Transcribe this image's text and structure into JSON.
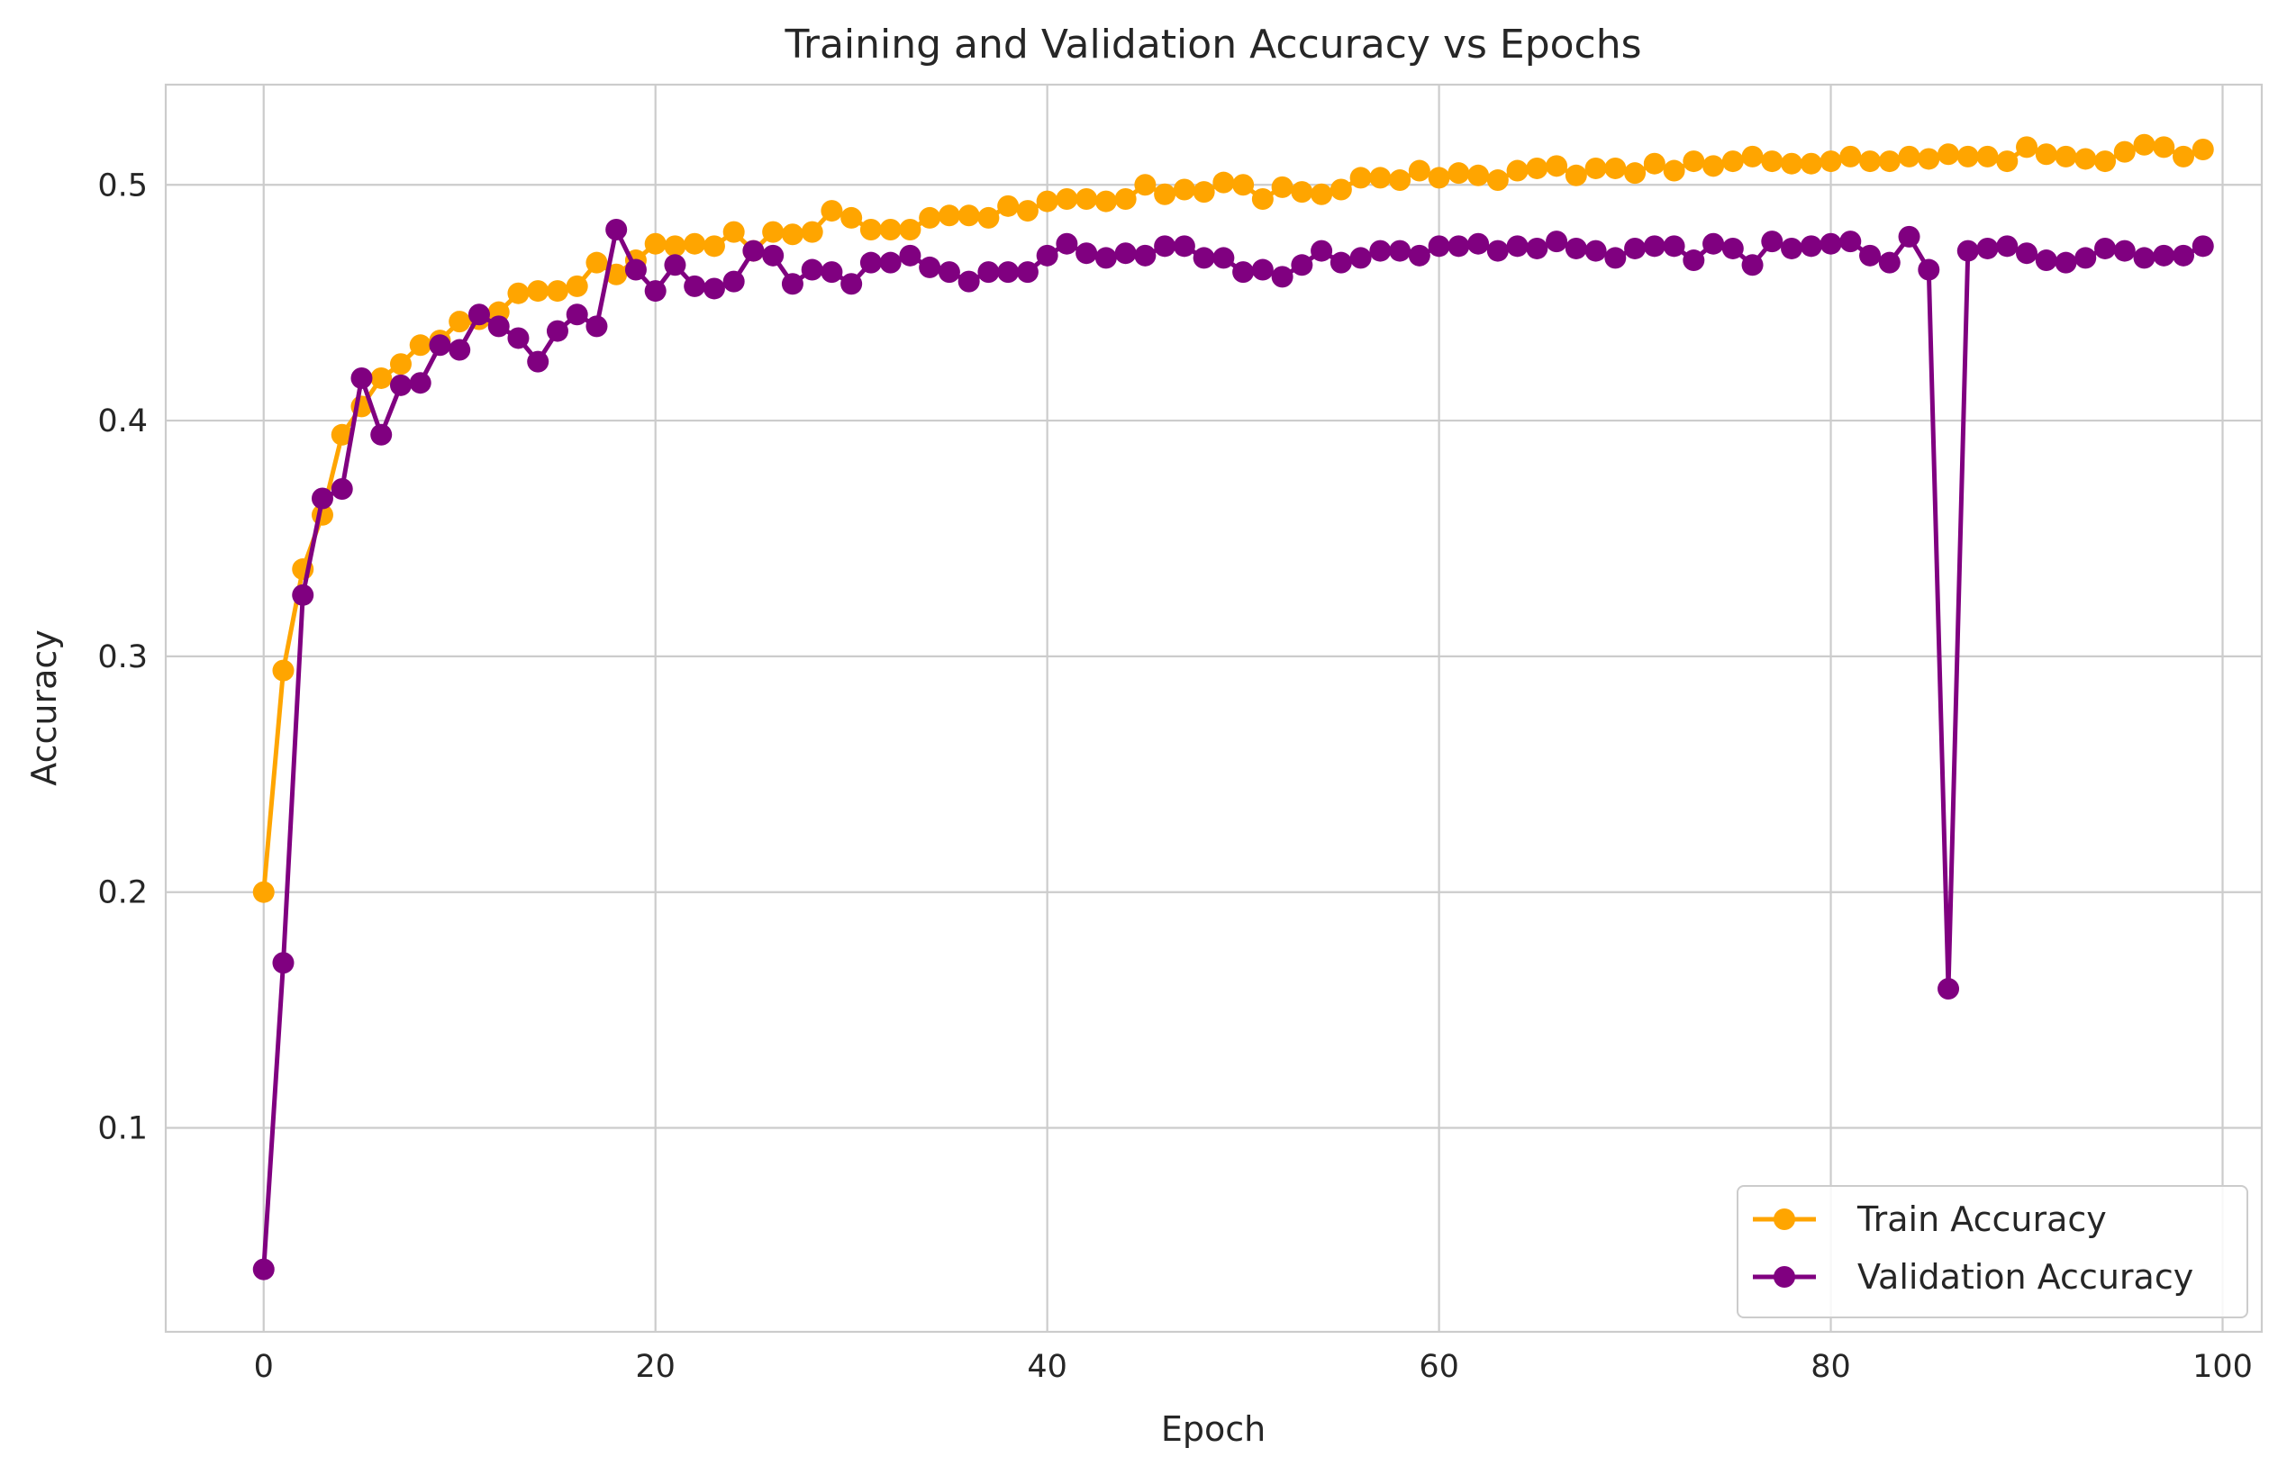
{
  "chart_data": {
    "type": "line",
    "title": "Training and Validation Accuracy vs Epochs",
    "xlabel": "Epoch",
    "ylabel": "Accuracy",
    "xlim": [
      -5,
      102
    ],
    "ylim": [
      0.0135,
      0.5425
    ],
    "xticks": [
      0,
      20,
      40,
      60,
      80,
      100
    ],
    "yticks": [
      0.1,
      0.2,
      0.3,
      0.4,
      0.5
    ],
    "xtick_labels": [
      "0",
      "20",
      "40",
      "60",
      "80",
      "100"
    ],
    "ytick_labels": [
      "0.1",
      "0.2",
      "0.3",
      "0.4",
      "0.5"
    ],
    "grid": true,
    "legend_position": "lower right",
    "series": [
      {
        "name": "Train Accuracy",
        "color": "#ffa500",
        "marker": "circle",
        "values": [
          0.2,
          0.294,
          0.337,
          0.36,
          0.394,
          0.406,
          0.418,
          0.424,
          0.432,
          0.434,
          0.442,
          0.443,
          0.446,
          0.454,
          0.455,
          0.455,
          0.457,
          0.467,
          0.462,
          0.468,
          0.475,
          0.474,
          0.475,
          0.474,
          0.48,
          0.472,
          0.48,
          0.479,
          0.48,
          0.489,
          0.486,
          0.481,
          0.481,
          0.481,
          0.486,
          0.487,
          0.487,
          0.486,
          0.491,
          0.489,
          0.493,
          0.494,
          0.494,
          0.493,
          0.494,
          0.5,
          0.496,
          0.498,
          0.497,
          0.501,
          0.5,
          0.494,
          0.499,
          0.497,
          0.496,
          0.498,
          0.503,
          0.503,
          0.502,
          0.506,
          0.503,
          0.505,
          0.504,
          0.502,
          0.506,
          0.507,
          0.508,
          0.504,
          0.507,
          0.507,
          0.505,
          0.509,
          0.506,
          0.51,
          0.508,
          0.51,
          0.512,
          0.51,
          0.509,
          0.509,
          0.51,
          0.512,
          0.51,
          0.51,
          0.512,
          0.511,
          0.513,
          0.512,
          0.512,
          0.51,
          0.516,
          0.513,
          0.512,
          0.511,
          0.51,
          0.514,
          0.517,
          0.516,
          0.512,
          0.515
        ]
      },
      {
        "name": "Validation Accuracy",
        "color": "#800080",
        "marker": "circle",
        "values": [
          0.04,
          0.17,
          0.326,
          0.367,
          0.371,
          0.418,
          0.394,
          0.415,
          0.416,
          0.432,
          0.43,
          0.445,
          0.44,
          0.435,
          0.425,
          0.438,
          0.445,
          0.44,
          0.481,
          0.464,
          0.455,
          0.466,
          0.457,
          0.456,
          0.459,
          0.472,
          0.47,
          0.458,
          0.464,
          0.463,
          0.458,
          0.467,
          0.467,
          0.47,
          0.465,
          0.463,
          0.459,
          0.463,
          0.463,
          0.463,
          0.47,
          0.475,
          0.471,
          0.469,
          0.471,
          0.47,
          0.474,
          0.474,
          0.469,
          0.469,
          0.463,
          0.464,
          0.461,
          0.466,
          0.472,
          0.467,
          0.469,
          0.472,
          0.472,
          0.47,
          0.474,
          0.474,
          0.475,
          0.472,
          0.474,
          0.473,
          0.476,
          0.473,
          0.472,
          0.469,
          0.473,
          0.474,
          0.474,
          0.468,
          0.475,
          0.473,
          0.466,
          0.476,
          0.473,
          0.474,
          0.475,
          0.476,
          0.47,
          0.467,
          0.478,
          0.464,
          0.159,
          0.472,
          0.473,
          0.474,
          0.471,
          0.468,
          0.467,
          0.469,
          0.473,
          0.472,
          0.469,
          0.47,
          0.47,
          0.474
        ]
      }
    ]
  }
}
